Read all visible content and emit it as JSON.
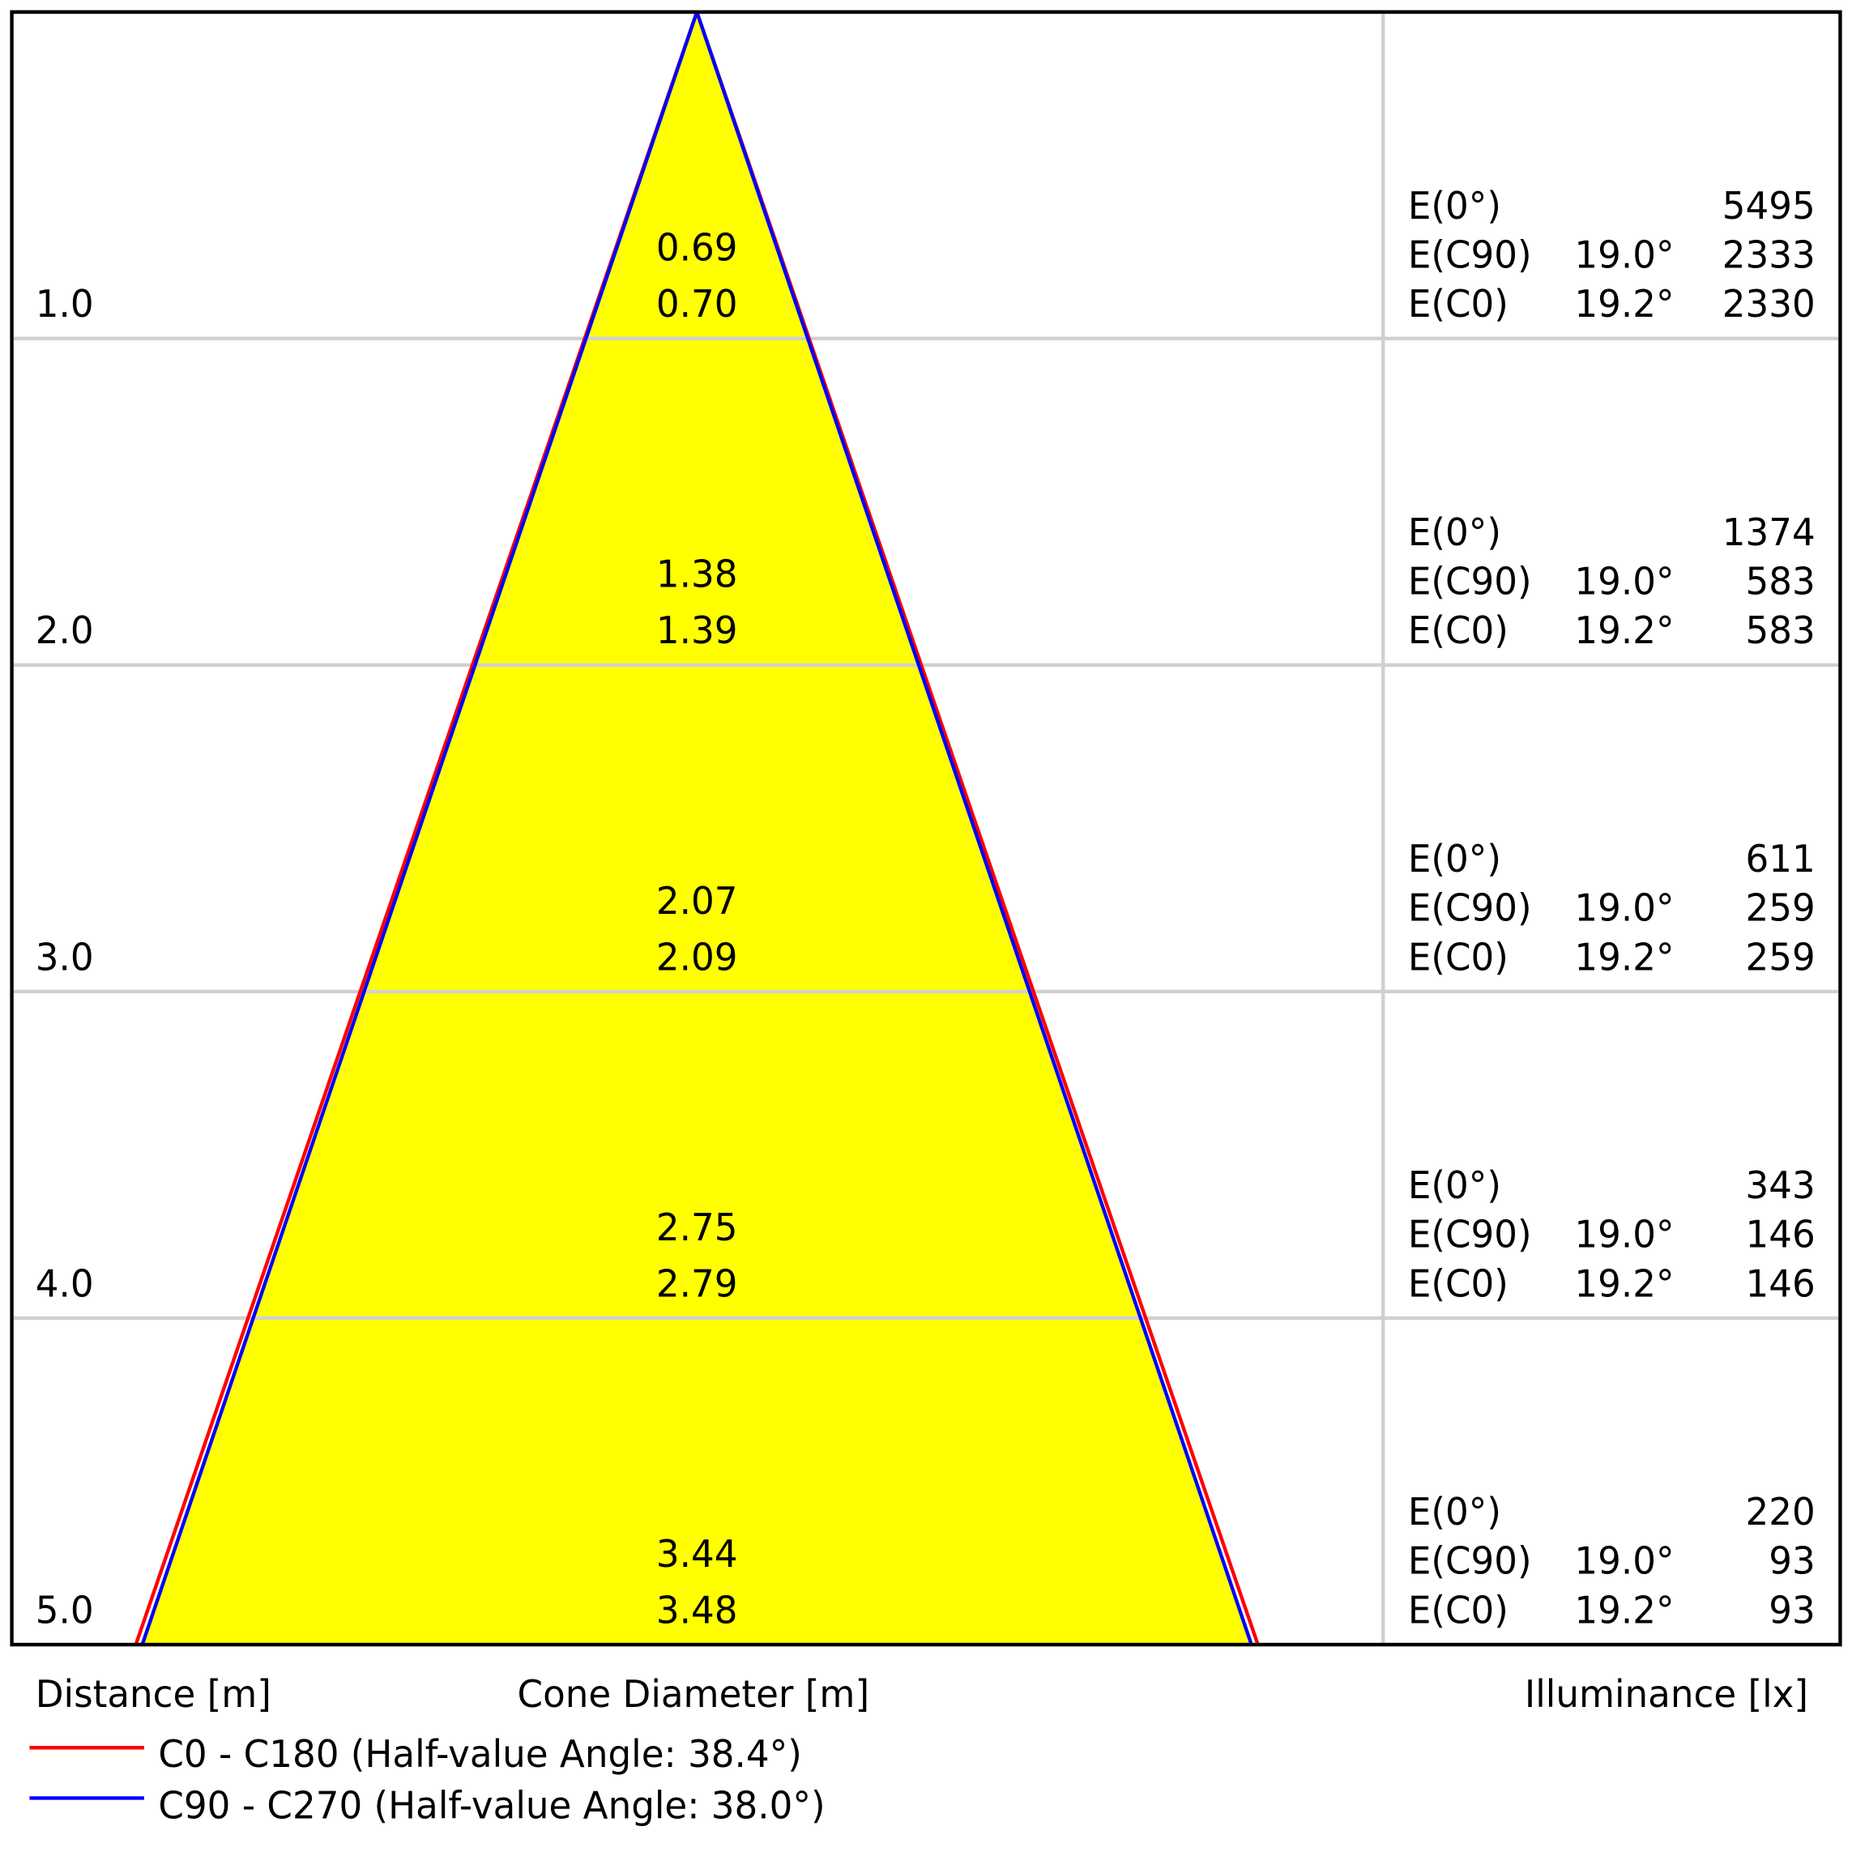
{
  "chart_data": {
    "type": "cone-diagram",
    "distance_label": "Distance [m]",
    "diameter_label": "Cone Diameter [m]",
    "illuminance_label": "Illuminance [lx]",
    "colors": {
      "cone_fill": "#ffff00",
      "c0_line": "#ff0000",
      "c90_line": "#0000ff",
      "grid": "#d0d0d0",
      "frame": "#000000"
    },
    "legend": [
      {
        "label": "C0 - C180 (Half-value Angle: 38.4°)",
        "color": "#ff0000",
        "half_angle": 38.4
      },
      {
        "label": "C90 - C270 (Half-value Angle: 38.0°)",
        "color": "#0000ff",
        "half_angle": 38.0
      }
    ],
    "rows": [
      {
        "distance": "1.0",
        "diam_c90": "0.69",
        "diam_c0": "0.70",
        "e0": "5495",
        "ec90_angle": "19.0°",
        "ec90": "2333",
        "ec0_angle": "19.2°",
        "ec0": "2330"
      },
      {
        "distance": "2.0",
        "diam_c90": "1.38",
        "diam_c0": "1.39",
        "e0": "1374",
        "ec90_angle": "19.0°",
        "ec90": "583",
        "ec0_angle": "19.2°",
        "ec0": "583"
      },
      {
        "distance": "3.0",
        "diam_c90": "2.07",
        "diam_c0": "2.09",
        "e0": "611",
        "ec90_angle": "19.0°",
        "ec90": "259",
        "ec0_angle": "19.2°",
        "ec0": "259"
      },
      {
        "distance": "4.0",
        "diam_c90": "2.75",
        "diam_c0": "2.79",
        "e0": "343",
        "ec90_angle": "19.0°",
        "ec90": "146",
        "ec0_angle": "19.2°",
        "ec0": "146"
      },
      {
        "distance": "5.0",
        "diam_c90": "3.44",
        "diam_c0": "3.48",
        "e0": "220",
        "ec90_angle": "19.0°",
        "ec90": "93",
        "ec0_angle": "19.2°",
        "ec0": "93"
      }
    ],
    "row_labels": {
      "e0": "E(0°)",
      "ec90": "E(C90)",
      "ec0": "E(C0)"
    }
  }
}
